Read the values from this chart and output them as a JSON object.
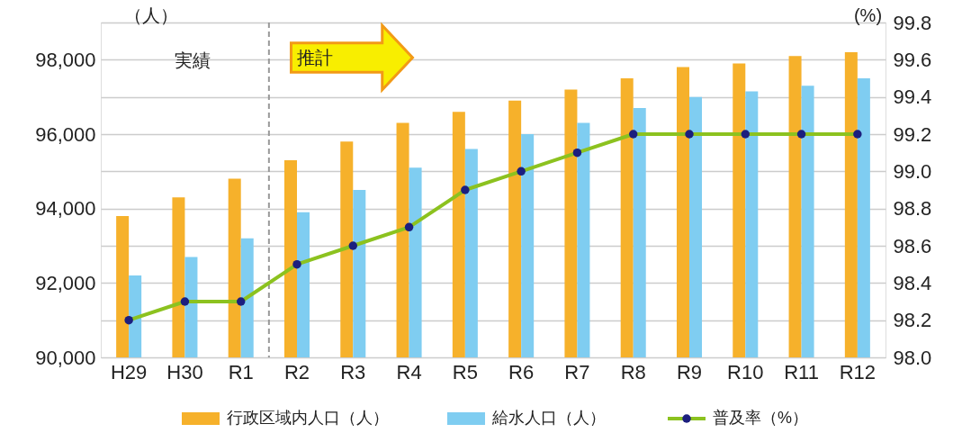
{
  "chart_data": {
    "type": "bar",
    "categories": [
      "H29",
      "H30",
      "R1",
      "R2",
      "R3",
      "R4",
      "R5",
      "R6",
      "R7",
      "R8",
      "R9",
      "R10",
      "R11",
      "R12"
    ],
    "series": [
      {
        "name": "行政区域内人口（人）",
        "color": "#f6b12b",
        "values": [
          93800,
          94300,
          94800,
          95300,
          95800,
          96300,
          96600,
          96900,
          97200,
          97500,
          97800,
          97900,
          98100,
          98200
        ]
      },
      {
        "name": "給水人口（人）",
        "color": "#7fcdf1",
        "values": [
          92200,
          92700,
          93200,
          93900,
          94500,
          95100,
          95600,
          96000,
          96300,
          96700,
          97000,
          97150,
          97300,
          97500
        ]
      },
      {
        "name": "普及率（%）",
        "type": "line",
        "axis": "y2",
        "color": "#8cc21f",
        "marker": "circle",
        "values": [
          98.2,
          98.3,
          98.3,
          98.5,
          98.6,
          98.7,
          98.9,
          99.0,
          99.1,
          99.2,
          99.2,
          99.2,
          99.2,
          99.2
        ]
      }
    ],
    "ylabel": "（人）",
    "y2label": "(%)",
    "ylim": [
      90000,
      99000
    ],
    "yticks": [
      {
        "value": 90000,
        "label": "90,000"
      },
      {
        "value": 91000,
        "label": null
      },
      {
        "value": 92000,
        "label": "92,000"
      },
      {
        "value": 93000,
        "label": null
      },
      {
        "value": 94000,
        "label": "94,000"
      },
      {
        "value": 95000,
        "label": null
      },
      {
        "value": 96000,
        "label": "96,000"
      },
      {
        "value": 97000,
        "label": null
      },
      {
        "value": 98000,
        "label": "98,000"
      },
      {
        "value": 99000,
        "label": null
      }
    ],
    "y2lim": [
      98.0,
      99.8
    ],
    "y2ticks": [
      {
        "value": 98.0,
        "label": "98.0"
      },
      {
        "value": 98.2,
        "label": "98.2"
      },
      {
        "value": 98.4,
        "label": "98.4"
      },
      {
        "value": 98.6,
        "label": "98.6"
      },
      {
        "value": 98.8,
        "label": "98.8"
      },
      {
        "value": 99.0,
        "label": "99.0"
      },
      {
        "value": 99.2,
        "label": "99.2"
      },
      {
        "value": 99.4,
        "label": "99.4"
      },
      {
        "value": 99.6,
        "label": "99.6"
      },
      {
        "value": 99.8,
        "label": "99.8"
      }
    ],
    "grid": "y",
    "legend": "bottom",
    "ref_lines": [
      {
        "axis": "x",
        "value": "R1",
        "line_style": "dashed",
        "color": "#999999",
        "label": null
      }
    ],
    "annotations": [
      "実績",
      "推計"
    ]
  }
}
